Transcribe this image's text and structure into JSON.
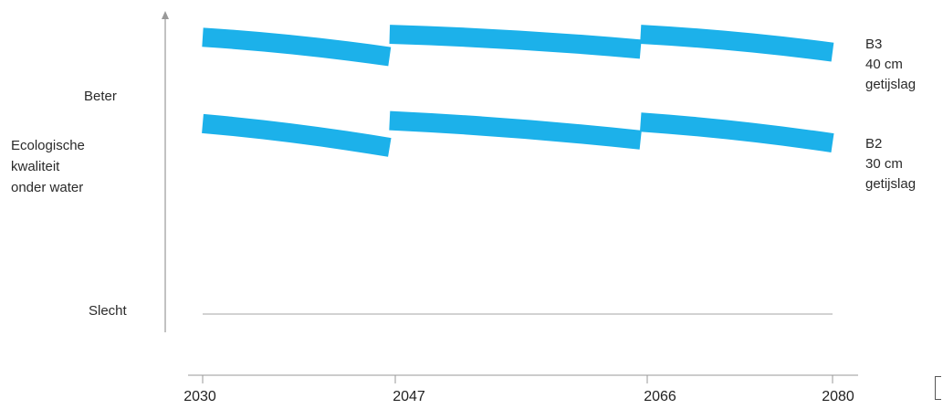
{
  "chart_data": {
    "type": "line",
    "x": [
      2030,
      2047,
      2066,
      2080
    ],
    "x_ticks": [
      "2030",
      "2047",
      "2066",
      "2080"
    ],
    "y_labels": {
      "top": "Beter",
      "bottom": "Slecht"
    },
    "ylabel_lines": [
      "Ecologische",
      "kwaliteit",
      "onder water"
    ],
    "ylim": [
      0,
      100
    ],
    "series": [
      {
        "name_lines": [
          "B3",
          "40 cm",
          "getijslag"
        ],
        "segments": [
          {
            "start": [
              2030,
              93
            ],
            "end": [
              2046.5,
              86.5
            ]
          },
          {
            "start": [
              2046.5,
              94
            ],
            "end": [
              2065.5,
              89
            ]
          },
          {
            "start": [
              2065.5,
              94
            ],
            "end": [
              2080,
              88
            ]
          }
        ]
      },
      {
        "name_lines": [
          "B2",
          "30 cm",
          "getijslag"
        ],
        "segments": [
          {
            "start": [
              2030,
              64
            ],
            "end": [
              2046.5,
              56
            ]
          },
          {
            "start": [
              2046.5,
              65
            ],
            "end": [
              2065.5,
              58.5
            ]
          },
          {
            "start": [
              2065.5,
              64.5
            ],
            "end": [
              2080,
              57.5
            ]
          }
        ]
      }
    ],
    "baseline_y": 0,
    "grid": false,
    "legend": "right",
    "colors": {
      "band": "#1cb1ea",
      "axis": "#999999",
      "baseline": "#b8b8b8"
    }
  }
}
